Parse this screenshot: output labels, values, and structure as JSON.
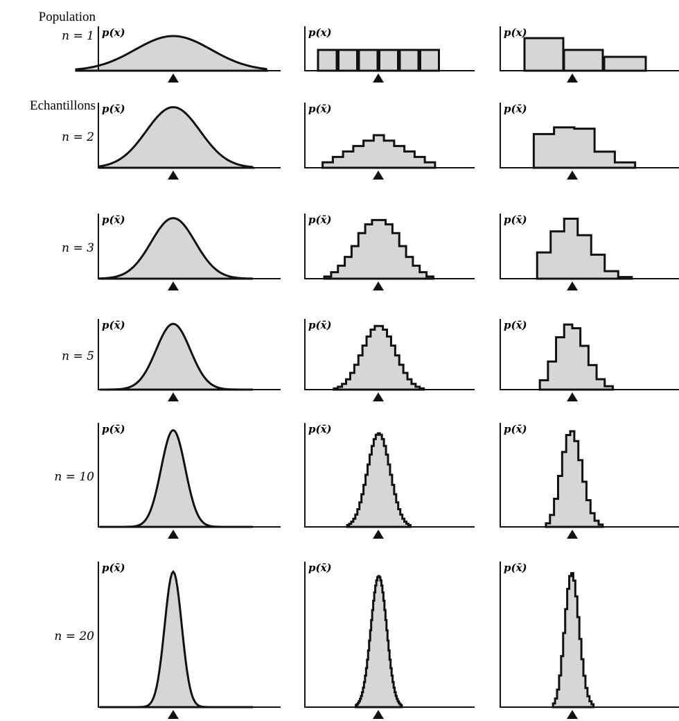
{
  "rows": [
    {
      "heading": "Population",
      "n": "n = 1",
      "axis_labels": [
        "p(x)",
        "p(x)",
        "p(x)"
      ]
    },
    {
      "heading": "Echantillons",
      "n": "n = 2",
      "axis_labels": [
        "p(x̄)",
        "p(x̄)",
        "p(x̄)"
      ]
    },
    {
      "n": "n = 3",
      "axis_labels": [
        "p(x̄)",
        "p(x̄)",
        "p(x̄)"
      ]
    },
    {
      "n": "n = 5",
      "axis_labels": [
        "p(x̄)",
        "p(x̄)",
        "p(x̄)"
      ]
    },
    {
      "n": "n = 10",
      "axis_labels": [
        "p(x̄)",
        "p(x̄)",
        "p(x̄)"
      ]
    },
    {
      "n": "n = 20",
      "axis_labels": [
        "p(x̄)",
        "p(x̄)",
        "p(x̄)"
      ]
    }
  ]
}
